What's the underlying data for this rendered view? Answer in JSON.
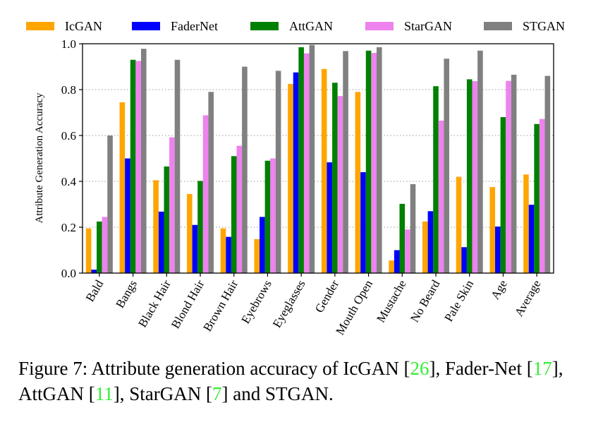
{
  "chart_data": {
    "type": "bar",
    "title": "",
    "xlabel": "",
    "ylabel": "Attribute Generation Accuracy",
    "ylim": [
      0,
      1.0
    ],
    "yticks": [
      "0.0",
      "0.2",
      "0.4",
      "0.6",
      "0.8",
      "1.0"
    ],
    "grid": "y-dotted",
    "legend_position": "top",
    "categories": [
      "Bald",
      "Bangs",
      "Black Hair",
      "Blond Hair",
      "Brown Hair",
      "Eyebrows",
      "Eyeglasses",
      "Gender",
      "Mouth Open",
      "Mustache",
      "No Beard",
      "Pale Skin",
      "Age",
      "Average"
    ],
    "series": [
      {
        "name": "IcGAN",
        "color": "#FFA500",
        "values": [
          0.195,
          0.745,
          0.405,
          0.345,
          0.195,
          0.148,
          0.825,
          0.89,
          0.79,
          0.055,
          0.225,
          0.42,
          0.375,
          0.43
        ]
      },
      {
        "name": "FaderNet",
        "color": "#0000FF",
        "values": [
          0.015,
          0.5,
          0.268,
          0.21,
          0.158,
          0.245,
          0.875,
          0.483,
          0.44,
          0.1,
          0.27,
          0.113,
          0.203,
          0.298
        ]
      },
      {
        "name": "AttGAN",
        "color": "#008000",
        "values": [
          0.225,
          0.93,
          0.465,
          0.402,
          0.51,
          0.49,
          0.985,
          0.83,
          0.97,
          0.302,
          0.815,
          0.845,
          0.68,
          0.65
        ]
      },
      {
        "name": "StarGAN",
        "color": "#EE82EE",
        "values": [
          0.245,
          0.925,
          0.592,
          0.688,
          0.555,
          0.5,
          0.958,
          0.772,
          0.96,
          0.19,
          0.665,
          0.837,
          0.838,
          0.672
        ]
      },
      {
        "name": "STGAN",
        "color": "#808080",
        "values": [
          0.6,
          0.978,
          0.93,
          0.79,
          0.9,
          0.882,
          0.995,
          0.968,
          0.985,
          0.388,
          0.935,
          0.97,
          0.865,
          0.86
        ]
      }
    ]
  },
  "caption": {
    "prefix": "Figure 7:  Attribute generation accuracy of IcGAN [",
    "ref1": "26",
    "mid1": "], Fader-Net [",
    "ref2": "17",
    "mid2": "], AttGAN [",
    "ref3": "11",
    "mid3": "], StarGAN [",
    "ref4": "7",
    "suffix": "] and STGAN."
  },
  "colors": {
    "reference_link": "#33ee33",
    "grid": "#999999",
    "axis": "#000000"
  }
}
